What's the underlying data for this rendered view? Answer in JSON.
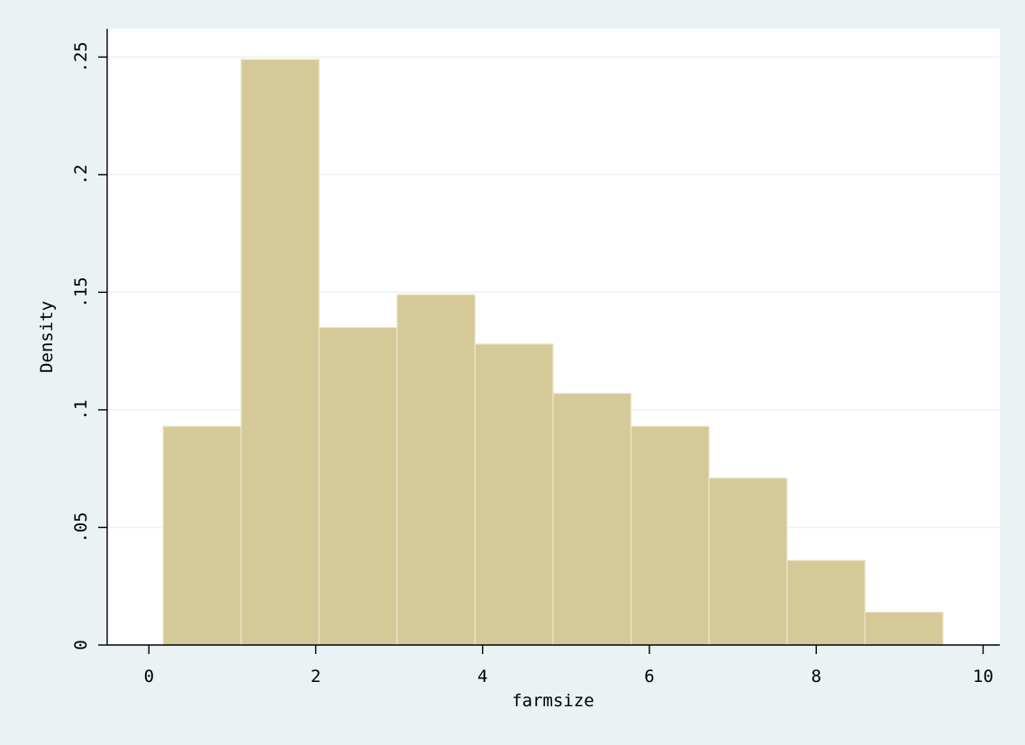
{
  "chart_data": {
    "type": "histogram",
    "xlabel": "farmsize",
    "ylabel": "Density",
    "xlim": [
      -0.5,
      10.2
    ],
    "ylim": [
      0,
      0.262
    ],
    "x_ticks": [
      0,
      2,
      4,
      6,
      8,
      10
    ],
    "x_tick_labels": [
      "0",
      "2",
      "4",
      "6",
      "8",
      "10"
    ],
    "y_ticks": [
      0,
      0.05,
      0.1,
      0.15,
      0.2,
      0.25
    ],
    "y_tick_labels": [
      "0",
      ".05",
      ".1",
      ".15",
      ".2",
      ".25"
    ],
    "grid": {
      "horizontal": true,
      "vertical": false
    },
    "bar_color": "#d5ca97",
    "bin_edges": [
      0.17,
      1.105,
      2.04,
      2.975,
      3.91,
      4.845,
      5.78,
      6.715,
      7.65,
      8.585,
      9.52
    ],
    "values": [
      0.093,
      0.249,
      0.135,
      0.149,
      0.128,
      0.107,
      0.093,
      0.071,
      0.036,
      0.014
    ]
  }
}
